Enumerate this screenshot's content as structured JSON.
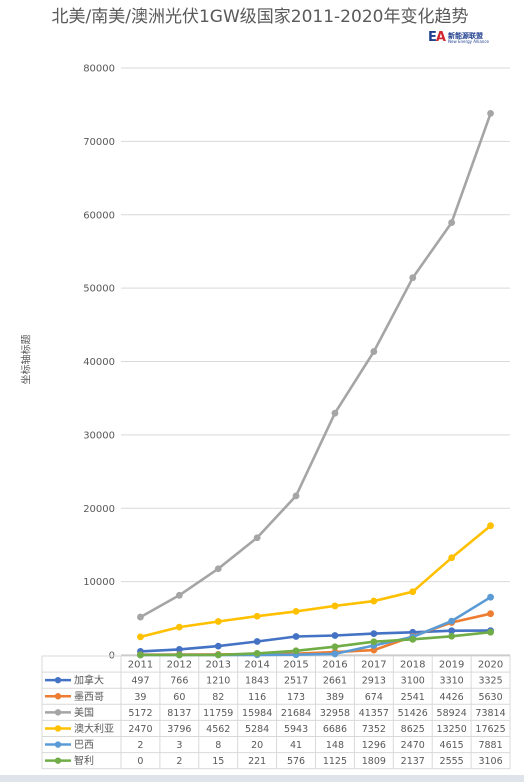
{
  "chart_data": {
    "type": "line",
    "title": "北美/南美/澳洲光伏1GW级国家2011-2020年变化趋势",
    "ylabel": "坐标轴标题",
    "ylim": [
      0,
      80000
    ],
    "yticks": [
      0,
      10000,
      20000,
      30000,
      40000,
      50000,
      60000,
      70000,
      80000
    ],
    "grid": true,
    "legend": "data-table",
    "categories": [
      "2011",
      "2012",
      "2013",
      "2014",
      "2015",
      "2016",
      "2017",
      "2018",
      "2019",
      "2020"
    ],
    "series": [
      {
        "name": "加拿大",
        "color": "#4472c4",
        "values": [
          497,
          766,
          1210,
          1843,
          2517,
          2661,
          2913,
          3100,
          3310,
          3325
        ]
      },
      {
        "name": "墨西哥",
        "color": "#ed7d31",
        "values": [
          39,
          60,
          82,
          116,
          173,
          389,
          674,
          2541,
          4426,
          5630
        ]
      },
      {
        "name": "美国",
        "color": "#a5a5a5",
        "values": [
          5172,
          8137,
          11759,
          15984,
          21684,
          32958,
          41357,
          51426,
          58924,
          73814
        ]
      },
      {
        "name": "澳大利亚",
        "color": "#ffc000",
        "values": [
          2470,
          3796,
          4562,
          5284,
          5943,
          6686,
          7352,
          8625,
          13250,
          17625
        ]
      },
      {
        "name": "巴西",
        "color": "#5b9bd5",
        "values": [
          2,
          3,
          8,
          20,
          41,
          148,
          1296,
          2470,
          4615,
          7881
        ]
      },
      {
        "name": "智利",
        "color": "#70ad47",
        "values": [
          0,
          2,
          15,
          221,
          576,
          1125,
          1809,
          2137,
          2555,
          3106
        ]
      }
    ]
  },
  "logo": {
    "mark_a": "E",
    "mark_b": "A",
    "name_cn": "新能源联盟",
    "name_en": "New Energy Alliance"
  }
}
